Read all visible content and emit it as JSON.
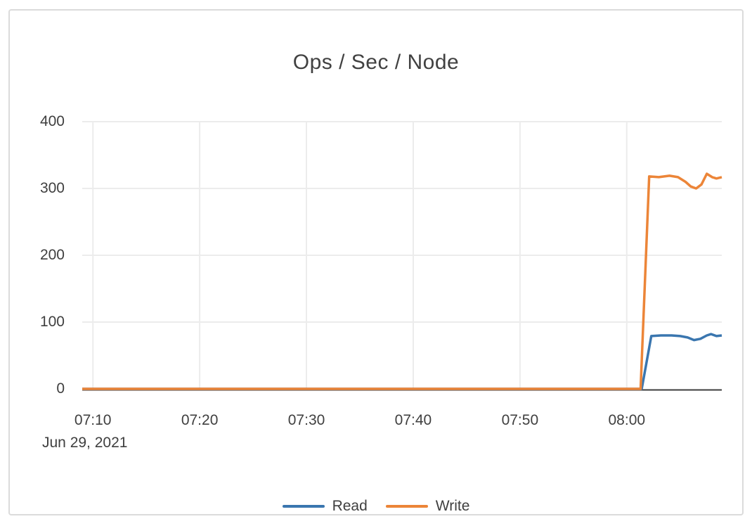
{
  "window": {
    "title": "Ops / Sec / Node"
  },
  "colors": {
    "read_series": "#3a76af",
    "write_series": "#ec8538",
    "axis_line": "#3c3c3c",
    "grid_line": "#ececec",
    "text": "#3f3f3f",
    "title_text": "#414141",
    "card_border": "#dbdbdb",
    "background": "#ffffff"
  },
  "chart_data": {
    "type": "line",
    "title": "Ops / Sec / Node",
    "xlabel": "",
    "ylabel": "",
    "x_unit": "minutes since midnight (480 = 08:00)",
    "x_domain": [
      429.0,
      488.9
    ],
    "y_domain": [
      0,
      400
    ],
    "grid": true,
    "legend_position": "bottom",
    "x_axis_date": "Jun 29, 2021",
    "x_ticks": [
      {
        "t": 430,
        "label": "07:10"
      },
      {
        "t": 440,
        "label": "07:20"
      },
      {
        "t": 450,
        "label": "07:30"
      },
      {
        "t": 460,
        "label": "07:40"
      },
      {
        "t": 470,
        "label": "07:50"
      },
      {
        "t": 480,
        "label": "08:00"
      }
    ],
    "y_ticks": [
      0,
      100,
      200,
      300,
      400
    ],
    "series": [
      {
        "name": "Read",
        "color": "#3a76af",
        "points": [
          [
            429.0,
            0
          ],
          [
            440,
            0
          ],
          [
            450,
            0
          ],
          [
            460,
            0
          ],
          [
            470,
            0
          ],
          [
            480,
            0
          ],
          [
            481.4,
            0
          ],
          [
            482.3,
            79
          ],
          [
            483.2,
            80
          ],
          [
            484.2,
            80
          ],
          [
            485.0,
            79
          ],
          [
            485.7,
            77
          ],
          [
            486.3,
            73
          ],
          [
            486.9,
            75
          ],
          [
            487.5,
            80
          ],
          [
            487.9,
            82
          ],
          [
            488.4,
            79
          ],
          [
            488.9,
            80
          ]
        ]
      },
      {
        "name": "Write",
        "color": "#ec8538",
        "points": [
          [
            429.0,
            0
          ],
          [
            440,
            0
          ],
          [
            450,
            0
          ],
          [
            460,
            0
          ],
          [
            470,
            0
          ],
          [
            480,
            0
          ],
          [
            481.3,
            0
          ],
          [
            482.1,
            318
          ],
          [
            483.0,
            317
          ],
          [
            484.0,
            319
          ],
          [
            484.8,
            317
          ],
          [
            485.5,
            310
          ],
          [
            486.0,
            303
          ],
          [
            486.5,
            300
          ],
          [
            487.0,
            306
          ],
          [
            487.5,
            322
          ],
          [
            488.0,
            317
          ],
          [
            488.4,
            315
          ],
          [
            488.9,
            317
          ]
        ]
      }
    ]
  }
}
